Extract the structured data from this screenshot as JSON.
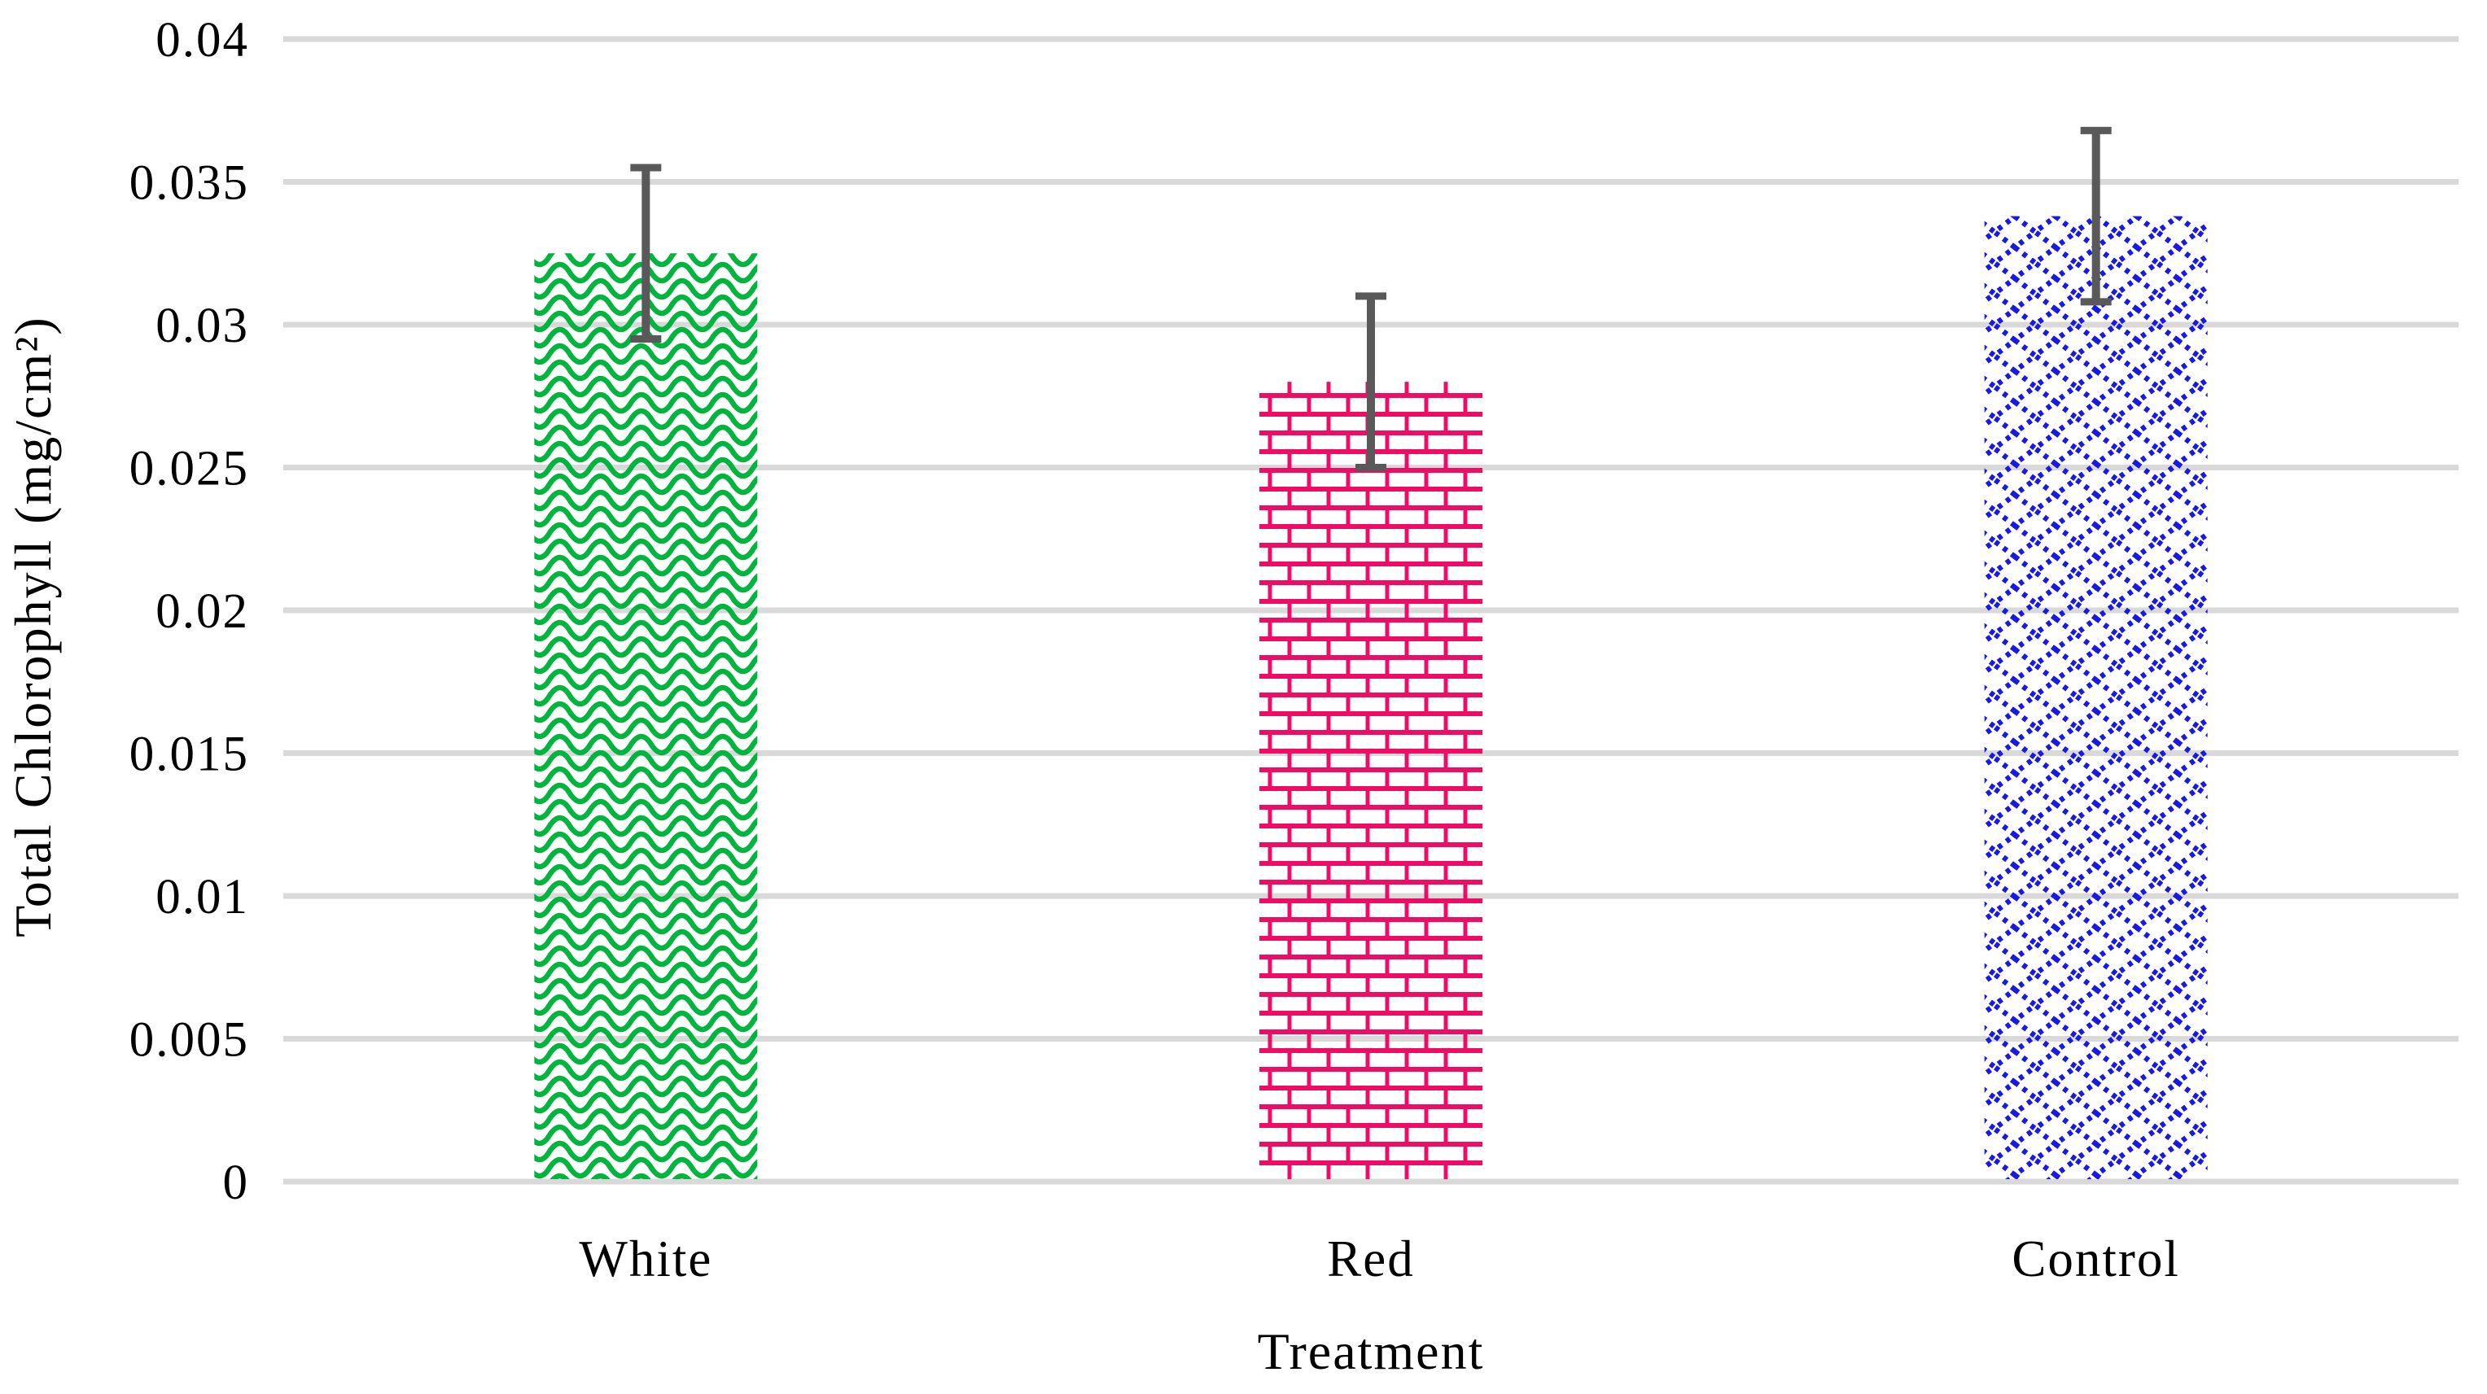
{
  "chart_data": {
    "type": "bar",
    "title": "",
    "xlabel": "Treatment",
    "ylabel": "Total Chlorophyll (mg/cm²)",
    "categories": [
      "White",
      "Red",
      "Control"
    ],
    "series": [
      {
        "name": "Total Chlorophyll (mg/cm²)",
        "values": [
          0.0325,
          0.028,
          0.0338
        ]
      }
    ],
    "error_bars": {
      "type": "symmetric",
      "values": [
        0.003,
        0.003,
        0.003
      ]
    },
    "ylim": [
      0,
      0.04
    ],
    "yticks": [
      0,
      0.005,
      0.01,
      0.015,
      0.02,
      0.025,
      0.03,
      0.035,
      0.04
    ],
    "ytick_labels": [
      "0",
      "0.005",
      "0.01",
      "0.015",
      "0.02",
      "0.025",
      "0.03",
      "0.035",
      "0.04"
    ],
    "grid": "horizontal",
    "legend": false,
    "bar_styles": [
      {
        "category": "White",
        "pattern": "wave",
        "color": "#00B43E"
      },
      {
        "category": "Red",
        "pattern": "brick",
        "color": "#EE0C64"
      },
      {
        "category": "Control",
        "pattern": "diamond-lattice",
        "color": "#1919E6"
      }
    ],
    "colors": {
      "gridline": "#D9D9D9",
      "error_bar": "#595959",
      "text": "#000000",
      "background": "#FFFFFF"
    }
  }
}
